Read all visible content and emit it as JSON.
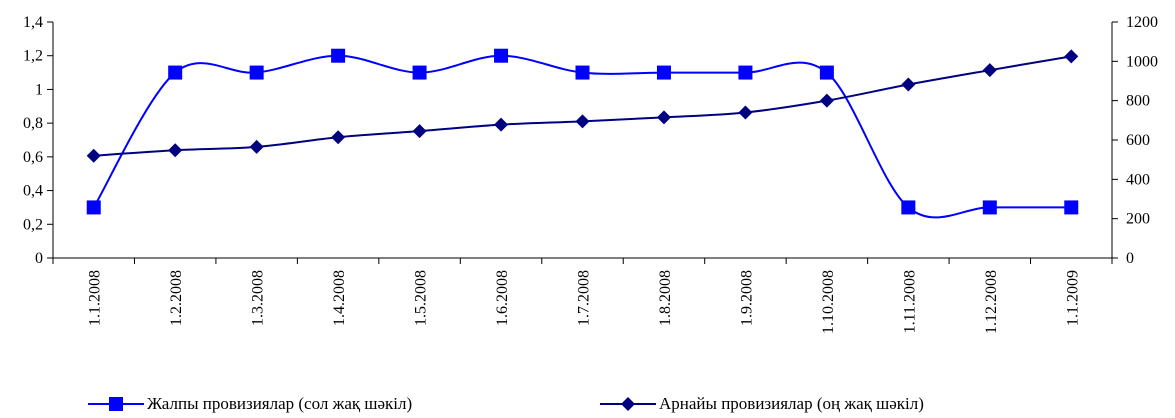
{
  "chart_data": {
    "type": "line",
    "x": [
      "1.1.2008",
      "1.2.2008",
      "1.3.2008",
      "1.4.2008",
      "1.5.2008",
      "1.6.2008",
      "1.7.2008",
      "1.8.2008",
      "1.9.2008",
      "1.10.2008",
      "1.11.2008",
      "1.12.2008",
      "1.1.2009"
    ],
    "series": [
      {
        "name": "Жалпы провизиялар (сол жақ шәкіл)",
        "axis": "left",
        "marker": "square",
        "color": "#0000ff",
        "values": [
          0.3,
          1.1,
          1.1,
          1.2,
          1.1,
          1.2,
          1.1,
          1.1,
          1.1,
          1.1,
          0.3,
          0.3,
          0.3
        ]
      },
      {
        "name": "Арнайы провизиялар (оң жақ шәкіл)",
        "axis": "right",
        "marker": "diamond",
        "color": "#000080",
        "values": [
          520,
          548,
          565,
          614,
          645,
          678,
          695,
          715,
          740,
          800,
          882,
          955,
          1025
        ]
      }
    ],
    "y_left": {
      "ticks": [
        "0",
        "0,2",
        "0,4",
        "0,6",
        "0,8",
        "1",
        "1,2",
        "1,4"
      ],
      "range": [
        0,
        1.4
      ]
    },
    "y_right": {
      "ticks": [
        "0",
        "200",
        "400",
        "600",
        "800",
        "1000",
        "1200"
      ],
      "range": [
        0,
        1200
      ]
    },
    "grid": false,
    "legend_position": "bottom"
  }
}
